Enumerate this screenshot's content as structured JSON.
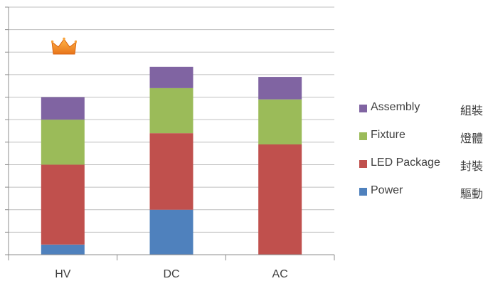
{
  "chart_data": {
    "type": "bar",
    "stacked": true,
    "categories": [
      "HV",
      "DC",
      "AC"
    ],
    "series": [
      {
        "name": "Power",
        "name_cn": "驅動",
        "color": "#4F81BD",
        "values": [
          0.45,
          2.0,
          0
        ]
      },
      {
        "name": "LED Package",
        "name_cn": "封裝",
        "color": "#C0504D",
        "values": [
          3.55,
          3.4,
          4.9
        ]
      },
      {
        "name": "Fixture",
        "name_cn": "燈體",
        "color": "#9BBB59",
        "values": [
          2.0,
          2.0,
          2.0
        ]
      },
      {
        "name": "Assembly",
        "name_cn": "組裝",
        "color": "#8064A2",
        "values": [
          1.0,
          0.95,
          1.0
        ]
      }
    ],
    "ylim": [
      0,
      11
    ],
    "grid": true,
    "legend_position": "right",
    "annotation": "crown-icon above HV bar"
  }
}
